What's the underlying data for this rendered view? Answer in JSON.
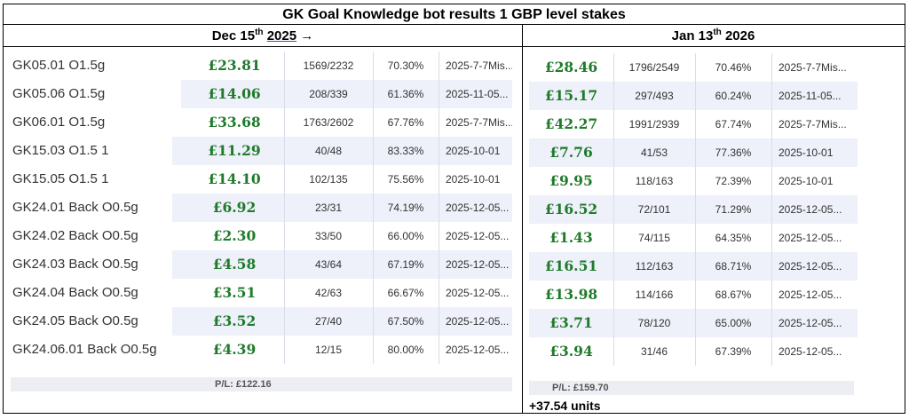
{
  "title": "GK Goal Knowledge bot results 1 GBP level stakes",
  "left_header": {
    "prefix": "Dec 15",
    "sup": "th",
    "year": "2025",
    "arrow": "→"
  },
  "right_header": {
    "prefix": "Jan 13",
    "sup": "th",
    "year": "2026"
  },
  "rows": [
    {
      "name": "GK05.01 O1.5g",
      "left": {
        "pl": "£23.81",
        "record": "1569/2232",
        "pct": "70.30%",
        "date": "2025-7-7Mis..."
      },
      "right": {
        "pl": "£28.46",
        "record": "1796/2549",
        "pct": "70.46%",
        "date": "2025-7-7Mis..."
      }
    },
    {
      "name": "GK05.06 O1.5g",
      "left": {
        "pl": "£14.06",
        "record": "208/339",
        "pct": "61.36%",
        "date": "2025-11-05..."
      },
      "right": {
        "pl": "£15.17",
        "record": "297/493",
        "pct": "60.24%",
        "date": "2025-11-05..."
      }
    },
    {
      "name": "GK06.01 O1.5g",
      "left": {
        "pl": "£33.68",
        "record": "1763/2602",
        "pct": "67.76%",
        "date": "2025-7-7Mis..."
      },
      "right": {
        "pl": "£42.27",
        "record": "1991/2939",
        "pct": "67.74%",
        "date": "2025-7-7Mis..."
      }
    },
    {
      "name": "GK15.03 O1.5 1",
      "left": {
        "pl": "£11.29",
        "record": "40/48",
        "pct": "83.33%",
        "date": "2025-10-01"
      },
      "right": {
        "pl": "£7.76",
        "record": "41/53",
        "pct": "77.36%",
        "date": "2025-10-01"
      }
    },
    {
      "name": "GK15.05 O1.5 1",
      "left": {
        "pl": "£14.10",
        "record": "102/135",
        "pct": "75.56%",
        "date": "2025-10-01"
      },
      "right": {
        "pl": "£9.95",
        "record": "118/163",
        "pct": "72.39%",
        "date": "2025-10-01"
      }
    },
    {
      "name": "GK24.01 Back O0.5g",
      "left": {
        "pl": "£6.92",
        "record": "23/31",
        "pct": "74.19%",
        "date": "2025-12-05..."
      },
      "right": {
        "pl": "£16.52",
        "record": "72/101",
        "pct": "71.29%",
        "date": "2025-12-05..."
      }
    },
    {
      "name": "GK24.02 Back O0.5g",
      "left": {
        "pl": "£2.30",
        "record": "33/50",
        "pct": "66.00%",
        "date": "2025-12-05..."
      },
      "right": {
        "pl": "£1.43",
        "record": "74/115",
        "pct": "64.35%",
        "date": "2025-12-05..."
      }
    },
    {
      "name": "GK24.03 Back O0.5g",
      "left": {
        "pl": "£4.58",
        "record": "43/64",
        "pct": "67.19%",
        "date": "2025-12-05..."
      },
      "right": {
        "pl": "£16.51",
        "record": "112/163",
        "pct": "68.71%",
        "date": "2025-12-05..."
      }
    },
    {
      "name": "GK24.04 Back O0.5g",
      "left": {
        "pl": "£3.51",
        "record": "42/63",
        "pct": "66.67%",
        "date": "2025-12-05..."
      },
      "right": {
        "pl": "£13.98",
        "record": "114/166",
        "pct": "68.67%",
        "date": "2025-12-05..."
      }
    },
    {
      "name": "GK24.05 Back O0.5g",
      "left": {
        "pl": "£3.52",
        "record": "27/40",
        "pct": "67.50%",
        "date": "2025-12-05..."
      },
      "right": {
        "pl": "£3.71",
        "record": "78/120",
        "pct": "65.00%",
        "date": "2025-12-05..."
      }
    },
    {
      "name": "GK24.06.01 Back O0.5g",
      "left": {
        "pl": "£4.39",
        "record": "12/15",
        "pct": "80.00%",
        "date": "2025-12-05..."
      },
      "right": {
        "pl": "£3.94",
        "record": "31/46",
        "pct": "67.39%",
        "date": "2025-12-05..."
      }
    }
  ],
  "left_total": "P/L: £122.16",
  "right_total": "P/L: £159.70",
  "difference": "+37.54 units",
  "colors": {
    "pl_green": "#1f7a2a",
    "row_shade": "#eef0fa"
  }
}
